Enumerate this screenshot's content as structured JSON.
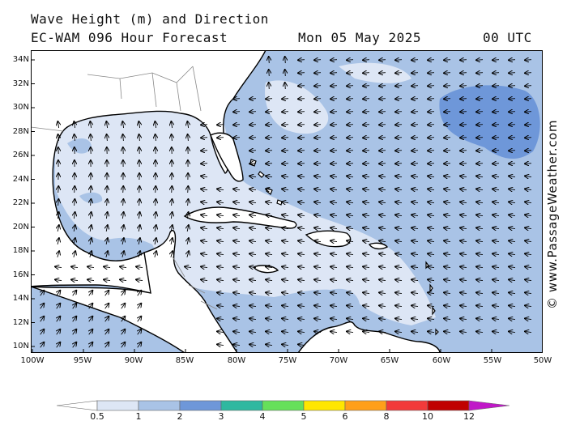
{
  "header": {
    "title": "Wave Height (m) and Direction",
    "model": "EC-WAM 096 Hour Forecast",
    "date": "Mon 05 May 2025",
    "time": "00 UTC"
  },
  "credit": "© www.PassageWeather.com",
  "map": {
    "lat_labels": [
      "34N",
      "32N",
      "30N",
      "28N",
      "26N",
      "24N",
      "22N",
      "20N",
      "18N",
      "16N",
      "14N",
      "12N",
      "10N"
    ],
    "lon_labels": [
      "100W",
      "95W",
      "90W",
      "85W",
      "80W",
      "75W",
      "70W",
      "65W",
      "60W",
      "55W",
      "50W"
    ],
    "colors": {
      "land": "#ffffff",
      "coast": "#000000",
      "border": "#888888"
    }
  },
  "colorbar": {
    "labels": [
      "0.5",
      "1",
      "2",
      "3",
      "4",
      "5",
      "6",
      "8",
      "10",
      "12"
    ],
    "colors": [
      "#ffffff",
      "#dde6f5",
      "#a9c3e6",
      "#6e97d9",
      "#2fb8a0",
      "#66e05a",
      "#ffe600",
      "#ff9f1a",
      "#f23a3a",
      "#c00000",
      "#c018c8"
    ]
  }
}
